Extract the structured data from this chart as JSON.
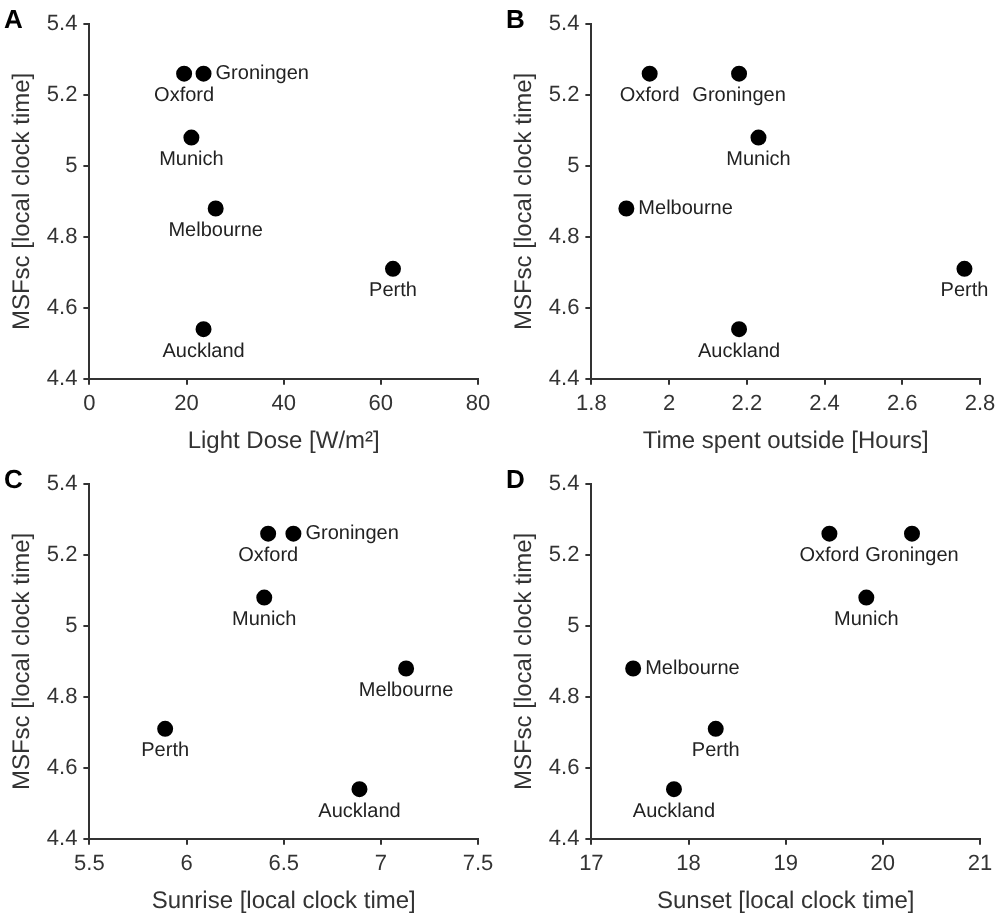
{
  "chart_data": [
    {
      "type": "scatter",
      "xlabel": "Light Dose [W/m²]",
      "ylabel": "MSFsc [local clock time]",
      "marker": "circle",
      "grid": false,
      "legend": false,
      "xlim": [
        0,
        80
      ],
      "xticks": [
        0,
        20,
        40,
        60,
        80
      ],
      "ylim": [
        4.4,
        5.4
      ],
      "yticks": [
        4.4,
        4.6,
        4.8,
        5,
        5.2,
        5.4
      ],
      "series": [
        {
          "color": "#000000",
          "x": [
            19.5,
            23.5,
            21,
            26,
            62.5,
            23.5
          ],
          "values": [
            5.26,
            5.26,
            5.08,
            4.88,
            4.71,
            4.54
          ]
        }
      ],
      "annotations": [
        "A",
        {
          "text": "Oxford",
          "x": 19.5,
          "y": 5.26
        },
        {
          "text": "Groningen",
          "x": 23.5,
          "y": 5.26
        },
        {
          "text": "Munich",
          "x": 21,
          "y": 5.08
        },
        {
          "text": "Melbourne",
          "x": 26,
          "y": 4.88
        },
        {
          "text": "Perth",
          "x": 62.5,
          "y": 4.71
        },
        {
          "text": "Auckland",
          "x": 23.5,
          "y": 4.54
        }
      ]
    },
    {
      "type": "scatter",
      "xlabel": "Time spent outside [Hours]",
      "ylabel": "MSFsc [local clock time]",
      "marker": "circle",
      "grid": false,
      "legend": false,
      "xlim": [
        1.8,
        2.8
      ],
      "xticks": [
        1.8,
        2,
        2.2,
        2.4,
        2.6,
        2.8
      ],
      "ylim": [
        4.4,
        5.4
      ],
      "yticks": [
        4.4,
        4.6,
        4.8,
        5,
        5.2,
        5.4
      ],
      "series": [
        {
          "color": "#000000",
          "x": [
            1.95,
            2.18,
            2.23,
            1.89,
            2.76,
            2.18
          ],
          "values": [
            5.26,
            5.26,
            5.08,
            4.88,
            4.71,
            4.54
          ]
        }
      ],
      "annotations": [
        "B",
        {
          "text": "Oxford",
          "x": 1.95,
          "y": 5.26
        },
        {
          "text": "Groningen",
          "x": 2.18,
          "y": 5.26
        },
        {
          "text": "Munich",
          "x": 2.23,
          "y": 5.08
        },
        {
          "text": "Melbourne",
          "x": 1.89,
          "y": 4.88
        },
        {
          "text": "Perth",
          "x": 2.76,
          "y": 4.71
        },
        {
          "text": "Auckland",
          "x": 2.18,
          "y": 4.54
        }
      ]
    },
    {
      "type": "scatter",
      "xlabel": "Sunrise [local clock time]",
      "ylabel": "MSFsc [local clock time]",
      "marker": "circle",
      "grid": false,
      "legend": false,
      "xlim": [
        5.5,
        7.5
      ],
      "xticks": [
        5.5,
        6,
        6.5,
        7,
        7.5
      ],
      "ylim": [
        4.4,
        5.4
      ],
      "yticks": [
        4.4,
        4.6,
        4.8,
        5,
        5.2,
        5.4
      ],
      "series": [
        {
          "color": "#000000",
          "x": [
            6.42,
            6.55,
            6.4,
            7.13,
            5.89,
            6.89
          ],
          "values": [
            5.26,
            5.26,
            5.08,
            4.88,
            4.71,
            4.54
          ]
        }
      ],
      "annotations": [
        "C",
        {
          "text": "Oxford",
          "x": 6.42,
          "y": 5.26
        },
        {
          "text": "Groningen",
          "x": 6.55,
          "y": 5.26
        },
        {
          "text": "Munich",
          "x": 6.4,
          "y": 5.08
        },
        {
          "text": "Melbourne",
          "x": 7.13,
          "y": 4.88
        },
        {
          "text": "Perth",
          "x": 5.89,
          "y": 4.71
        },
        {
          "text": "Auckland",
          "x": 6.89,
          "y": 4.54
        }
      ]
    },
    {
      "type": "scatter",
      "xlabel": "Sunset [local clock time]",
      "ylabel": "MSFsc [local clock time]",
      "marker": "circle",
      "grid": false,
      "legend": false,
      "xlim": [
        17,
        21
      ],
      "xticks": [
        17,
        18,
        19,
        20,
        21
      ],
      "ylim": [
        4.4,
        5.4
      ],
      "yticks": [
        4.4,
        4.6,
        4.8,
        5,
        5.2,
        5.4
      ],
      "series": [
        {
          "color": "#000000",
          "x": [
            19.45,
            20.3,
            19.83,
            17.43,
            18.28,
            17.85
          ],
          "values": [
            5.26,
            5.26,
            5.08,
            4.88,
            4.71,
            4.54
          ]
        }
      ],
      "annotations": [
        "D",
        {
          "text": "Oxford",
          "x": 19.45,
          "y": 5.26
        },
        {
          "text": "Groningen",
          "x": 20.3,
          "y": 5.26
        },
        {
          "text": "Munich",
          "x": 19.83,
          "y": 5.08
        },
        {
          "text": "Melbourne",
          "x": 17.43,
          "y": 4.88
        },
        {
          "text": "Perth",
          "x": 18.28,
          "y": 4.71
        },
        {
          "text": "Auckland",
          "x": 17.85,
          "y": 4.54
        }
      ]
    }
  ]
}
